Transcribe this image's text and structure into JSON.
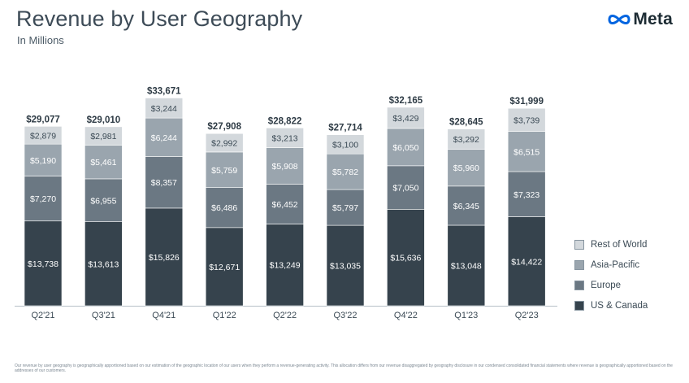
{
  "header": {
    "title": "Revenue by User Geography",
    "subtitle": "In Millions",
    "brand": "Meta"
  },
  "footnote": "Our revenue by user geography is geographically apportioned based on our estimation of the geographic location of our users when they perform a revenue-generating activity. This allocation differs from our revenue disaggregated by geography disclosure in our condensed consolidated financial statements where revenue is geographically apportioned based on the addresses of our customers.",
  "colors": {
    "us_canada": "#36434d",
    "europe": "#6b7883",
    "asia_pacific": "#9aa5ae",
    "rest_of_world": "#d3d8dc",
    "brand_logo": "#0064e0"
  },
  "chart_data": {
    "type": "bar",
    "stacked": true,
    "categories": [
      "Q2'21",
      "Q3'21",
      "Q4'21",
      "Q1'22",
      "Q2'22",
      "Q3'22",
      "Q4'22",
      "Q1'23",
      "Q2'23"
    ],
    "totals": [
      "$29,077",
      "$29,010",
      "$33,671",
      "$27,908",
      "$28,822",
      "$27,714",
      "$32,165",
      "$28,645",
      "$31,999"
    ],
    "series": [
      {
        "name": "US & Canada",
        "values": [
          13738,
          13613,
          15826,
          12671,
          13249,
          13035,
          15636,
          13048,
          14422
        ],
        "labels": [
          "$13,738",
          "$13,613",
          "$15,826",
          "$12,671",
          "$13,249",
          "$13,035",
          "$15,636",
          "$13,048",
          "$14,422"
        ]
      },
      {
        "name": "Europe",
        "values": [
          7270,
          6955,
          8357,
          6486,
          6452,
          5797,
          7050,
          6345,
          7323
        ],
        "labels": [
          "$7,270",
          "$6,955",
          "$8,357",
          "$6,486",
          "$6,452",
          "$5,797",
          "$7,050",
          "$6,345",
          "$7,323"
        ]
      },
      {
        "name": "Asia-Pacific",
        "values": [
          5190,
          5461,
          6244,
          5759,
          5908,
          5782,
          6050,
          5960,
          6515
        ],
        "labels": [
          "$5,190",
          "$5,461",
          "$6,244",
          "$5,759",
          "$5,908",
          "$5,782",
          "$6,050",
          "$5,960",
          "$6,515"
        ]
      },
      {
        "name": "Rest of World",
        "values": [
          2879,
          2981,
          3244,
          2992,
          3213,
          3100,
          3429,
          3292,
          3739
        ],
        "labels": [
          "$2,879",
          "$2,981",
          "$3,244",
          "$2,992",
          "$3,213",
          "$3,100",
          "$3,429",
          "$3,292",
          "$3,739"
        ]
      }
    ],
    "legend": {
      "position": "right",
      "order": [
        "Rest of World",
        "Asia-Pacific",
        "Europe",
        "US & Canada"
      ]
    },
    "grid": false,
    "ylim": [
      0,
      34000
    ]
  }
}
